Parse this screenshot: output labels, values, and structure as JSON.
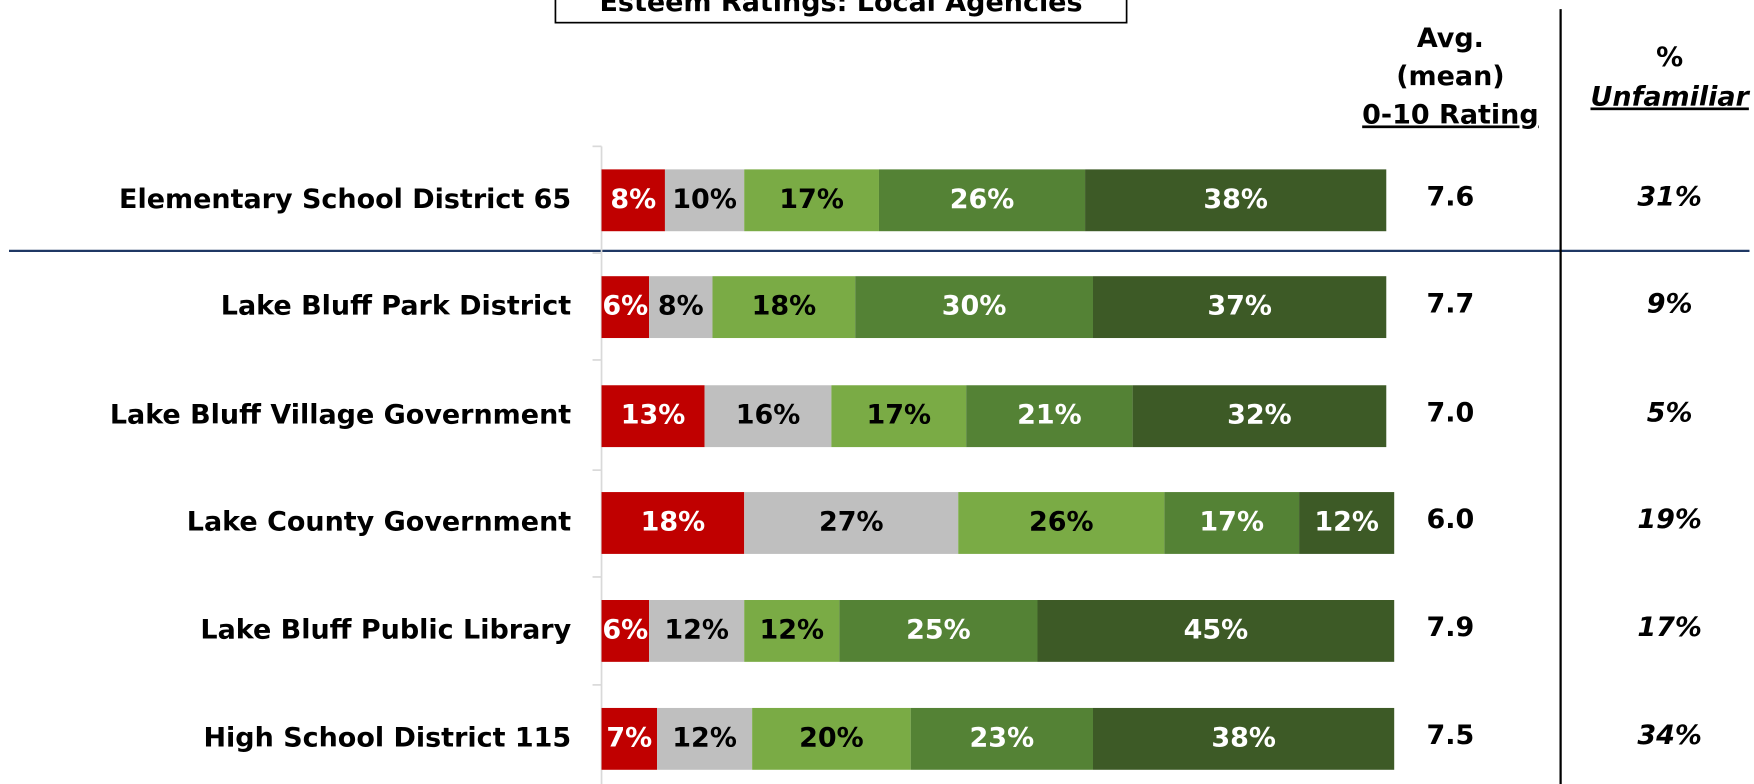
{
  "chart_data": {
    "type": "stacked_barh",
    "title": "Esteem Ratings:  Local Agencies",
    "categories": [
      "Elementary School District 65",
      "Lake Bluff Park District",
      "Lake Bluff Village Government",
      "Lake County Government",
      "Lake Bluff Public Library",
      "High School District 115"
    ],
    "xlim": [
      0,
      100
    ],
    "series": [
      {
        "color": "#c00000",
        "label_color": "#ffffff",
        "values": [
          8,
          6,
          13,
          18,
          6,
          7
        ],
        "value_labels": [
          "8%",
          "6%",
          "13%",
          "18%",
          "6%",
          "7%"
        ]
      },
      {
        "color": "#bfbfbf",
        "label_color": "#000000",
        "values": [
          10,
          8,
          16,
          27,
          12,
          12
        ],
        "value_labels": [
          "10%",
          "8%",
          "16%",
          "27%",
          "12%",
          "12%"
        ]
      },
      {
        "color": "#7aab45",
        "label_color": "#000000",
        "values": [
          17,
          18,
          17,
          26,
          12,
          20
        ],
        "value_labels": [
          "17%",
          "18%",
          "17%",
          "26%",
          "12%",
          "20%"
        ]
      },
      {
        "color": "#548235",
        "label_color": "#ffffff",
        "values": [
          26,
          30,
          21,
          17,
          25,
          23
        ],
        "value_labels": [
          "26%",
          "30%",
          "21%",
          "17%",
          "25%",
          "23%"
        ]
      },
      {
        "color": "#3d5a26",
        "label_color": "#ffffff",
        "values": [
          38,
          37,
          32,
          12,
          45,
          38
        ],
        "value_labels": [
          "38%",
          "37%",
          "32%",
          "12%",
          "45%",
          "38%"
        ]
      }
    ],
    "columns": [
      {
        "header": [
          "Avg.",
          "(mean)",
          "0-10 Rating"
        ],
        "values": [
          "7.6",
          "7.7",
          "7.0",
          "6.0",
          "7.9",
          "7.5"
        ]
      },
      {
        "header": [
          "%",
          "Unfamiliar"
        ],
        "values": [
          "31%",
          "9%",
          "5%",
          "19%",
          "17%",
          "34%"
        ]
      }
    ]
  }
}
